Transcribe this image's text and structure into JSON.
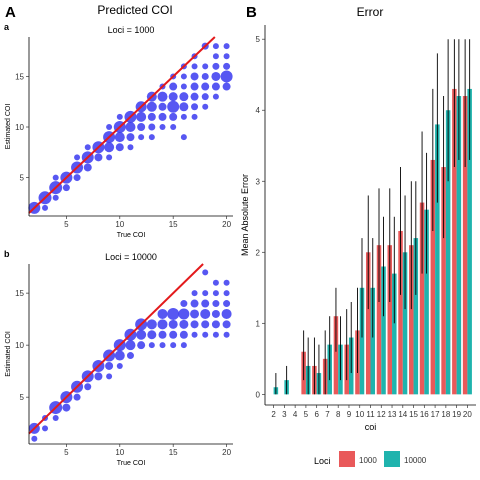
{
  "panel_labels": {
    "A": "A",
    "B": "B",
    "a": "a",
    "b": "b"
  },
  "titles": {
    "left": "Predicted COI",
    "right": "Error"
  },
  "colors": {
    "point": "#3a3af0",
    "identity": "#e31a1c",
    "series_1000": "#e9595a",
    "series_10000": "#1fb3ad",
    "errorbar": "#000000"
  },
  "chart_data": [
    {
      "type": "scatter",
      "panel": "a",
      "title": "Loci = 1000",
      "xlabel": "True COI",
      "ylabel": "Estimated COI",
      "xlim": [
        1.5,
        20.6
      ],
      "ylim": [
        1.2,
        18.9
      ],
      "xticks": [
        5,
        10,
        15,
        20
      ],
      "yticks": [
        5,
        10,
        15
      ],
      "identity_line": true,
      "points": [
        {
          "x": 2,
          "y": 2,
          "s": 6
        },
        {
          "x": 3,
          "y": 3,
          "s": 6.5
        },
        {
          "x": 3,
          "y": 2,
          "s": 3
        },
        {
          "x": 4,
          "y": 4,
          "s": 6.5
        },
        {
          "x": 4,
          "y": 3,
          "s": 3
        },
        {
          "x": 4,
          "y": 5,
          "s": 3
        },
        {
          "x": 5,
          "y": 5,
          "s": 6
        },
        {
          "x": 5,
          "y": 4,
          "s": 3.5
        },
        {
          "x": 6,
          "y": 6,
          "s": 6
        },
        {
          "x": 6,
          "y": 5,
          "s": 3.5
        },
        {
          "x": 6,
          "y": 7,
          "s": 3
        },
        {
          "x": 7,
          "y": 7,
          "s": 6
        },
        {
          "x": 7,
          "y": 6,
          "s": 4
        },
        {
          "x": 7,
          "y": 8,
          "s": 3
        },
        {
          "x": 8,
          "y": 8,
          "s": 6
        },
        {
          "x": 8,
          "y": 7,
          "s": 4
        },
        {
          "x": 9,
          "y": 9,
          "s": 6
        },
        {
          "x": 9,
          "y": 8,
          "s": 5
        },
        {
          "x": 9,
          "y": 7,
          "s": 3
        },
        {
          "x": 9,
          "y": 10,
          "s": 3
        },
        {
          "x": 10,
          "y": 10,
          "s": 6
        },
        {
          "x": 10,
          "y": 9,
          "s": 5
        },
        {
          "x": 10,
          "y": 8,
          "s": 4
        },
        {
          "x": 10,
          "y": 11,
          "s": 3
        },
        {
          "x": 11,
          "y": 11,
          "s": 6
        },
        {
          "x": 11,
          "y": 10,
          "s": 5
        },
        {
          "x": 11,
          "y": 9,
          "s": 4
        },
        {
          "x": 11,
          "y": 8,
          "s": 3
        },
        {
          "x": 12,
          "y": 12,
          "s": 5.5
        },
        {
          "x": 12,
          "y": 11,
          "s": 5
        },
        {
          "x": 12,
          "y": 10,
          "s": 4
        },
        {
          "x": 12,
          "y": 9,
          "s": 3
        },
        {
          "x": 13,
          "y": 13,
          "s": 5
        },
        {
          "x": 13,
          "y": 12,
          "s": 5
        },
        {
          "x": 13,
          "y": 11,
          "s": 4
        },
        {
          "x": 13,
          "y": 10,
          "s": 3.5
        },
        {
          "x": 13,
          "y": 9,
          "s": 3
        },
        {
          "x": 14,
          "y": 14,
          "s": 3
        },
        {
          "x": 14,
          "y": 13,
          "s": 5
        },
        {
          "x": 14,
          "y": 12,
          "s": 4
        },
        {
          "x": 14,
          "y": 11,
          "s": 4
        },
        {
          "x": 14,
          "y": 10,
          "s": 3
        },
        {
          "x": 15,
          "y": 15,
          "s": 3
        },
        {
          "x": 15,
          "y": 14,
          "s": 4
        },
        {
          "x": 15,
          "y": 13,
          "s": 4.5
        },
        {
          "x": 15,
          "y": 12,
          "s": 6
        },
        {
          "x": 15,
          "y": 11,
          "s": 4
        },
        {
          "x": 15,
          "y": 10,
          "s": 3
        },
        {
          "x": 16,
          "y": 16,
          "s": 3
        },
        {
          "x": 16,
          "y": 15,
          "s": 3
        },
        {
          "x": 16,
          "y": 14,
          "s": 3
        },
        {
          "x": 16,
          "y": 13,
          "s": 4.5
        },
        {
          "x": 16,
          "y": 12,
          "s": 4.5
        },
        {
          "x": 16,
          "y": 11,
          "s": 3
        },
        {
          "x": 16,
          "y": 9,
          "s": 3
        },
        {
          "x": 17,
          "y": 17,
          "s": 3
        },
        {
          "x": 17,
          "y": 16,
          "s": 3
        },
        {
          "x": 17,
          "y": 15,
          "s": 4
        },
        {
          "x": 17,
          "y": 14,
          "s": 4
        },
        {
          "x": 17,
          "y": 13,
          "s": 4
        },
        {
          "x": 17,
          "y": 12,
          "s": 3.5
        },
        {
          "x": 17,
          "y": 11,
          "s": 3
        },
        {
          "x": 18,
          "y": 18,
          "s": 3.5
        },
        {
          "x": 18,
          "y": 16,
          "s": 3
        },
        {
          "x": 18,
          "y": 15,
          "s": 3.5
        },
        {
          "x": 18,
          "y": 14,
          "s": 4
        },
        {
          "x": 18,
          "y": 13,
          "s": 3.5
        },
        {
          "x": 18,
          "y": 12,
          "s": 3
        },
        {
          "x": 19,
          "y": 18,
          "s": 3
        },
        {
          "x": 19,
          "y": 17,
          "s": 3
        },
        {
          "x": 19,
          "y": 16,
          "s": 3.5
        },
        {
          "x": 19,
          "y": 15,
          "s": 4.5
        },
        {
          "x": 19,
          "y": 14,
          "s": 4
        },
        {
          "x": 19,
          "y": 13,
          "s": 3
        },
        {
          "x": 20,
          "y": 18,
          "s": 3
        },
        {
          "x": 20,
          "y": 17,
          "s": 3
        },
        {
          "x": 20,
          "y": 16,
          "s": 3.5
        },
        {
          "x": 20,
          "y": 15,
          "s": 6
        },
        {
          "x": 20,
          "y": 14,
          "s": 4
        }
      ]
    },
    {
      "type": "scatter",
      "panel": "b",
      "title": "Loci = 10000",
      "xlabel": "True COI",
      "ylabel": "Estimated COI",
      "xlim": [
        1.5,
        20.6
      ],
      "ylim": [
        0.5,
        17.8
      ],
      "xticks": [
        5,
        10,
        15,
        20
      ],
      "yticks": [
        5,
        10,
        15
      ],
      "identity_line": true,
      "points": [
        {
          "x": 2,
          "y": 2,
          "s": 5.5
        },
        {
          "x": 2,
          "y": 1,
          "s": 3
        },
        {
          "x": 3,
          "y": 3,
          "s": 3
        },
        {
          "x": 3,
          "y": 2,
          "s": 3
        },
        {
          "x": 4,
          "y": 4,
          "s": 6.5
        },
        {
          "x": 4,
          "y": 3,
          "s": 3
        },
        {
          "x": 5,
          "y": 5,
          "s": 6
        },
        {
          "x": 5,
          "y": 4,
          "s": 4
        },
        {
          "x": 6,
          "y": 6,
          "s": 6
        },
        {
          "x": 6,
          "y": 5,
          "s": 3.5
        },
        {
          "x": 7,
          "y": 7,
          "s": 6
        },
        {
          "x": 7,
          "y": 6,
          "s": 3.5
        },
        {
          "x": 8,
          "y": 8,
          "s": 6
        },
        {
          "x": 8,
          "y": 7,
          "s": 4
        },
        {
          "x": 9,
          "y": 9,
          "s": 6
        },
        {
          "x": 9,
          "y": 8,
          "s": 4
        },
        {
          "x": 9,
          "y": 7,
          "s": 3
        },
        {
          "x": 10,
          "y": 10,
          "s": 6
        },
        {
          "x": 10,
          "y": 9,
          "s": 5
        },
        {
          "x": 10,
          "y": 8,
          "s": 3
        },
        {
          "x": 11,
          "y": 11,
          "s": 6
        },
        {
          "x": 11,
          "y": 10,
          "s": 5
        },
        {
          "x": 11,
          "y": 9,
          "s": 3.5
        },
        {
          "x": 12,
          "y": 12,
          "s": 6
        },
        {
          "x": 12,
          "y": 11,
          "s": 5
        },
        {
          "x": 12,
          "y": 10,
          "s": 4
        },
        {
          "x": 13,
          "y": 12,
          "s": 5
        },
        {
          "x": 13,
          "y": 11,
          "s": 4.5
        },
        {
          "x": 13,
          "y": 10,
          "s": 3
        },
        {
          "x": 14,
          "y": 13,
          "s": 5
        },
        {
          "x": 14,
          "y": 12,
          "s": 5
        },
        {
          "x": 14,
          "y": 11,
          "s": 4
        },
        {
          "x": 14,
          "y": 10,
          "s": 3
        },
        {
          "x": 15,
          "y": 13,
          "s": 6
        },
        {
          "x": 15,
          "y": 12,
          "s": 4.5
        },
        {
          "x": 15,
          "y": 11,
          "s": 4
        },
        {
          "x": 15,
          "y": 10,
          "s": 3
        },
        {
          "x": 16,
          "y": 14,
          "s": 3.5
        },
        {
          "x": 16,
          "y": 13,
          "s": 5.5
        },
        {
          "x": 16,
          "y": 12,
          "s": 4.5
        },
        {
          "x": 16,
          "y": 11,
          "s": 4
        },
        {
          "x": 16,
          "y": 10,
          "s": 3
        },
        {
          "x": 17,
          "y": 15,
          "s": 3
        },
        {
          "x": 17,
          "y": 14,
          "s": 4
        },
        {
          "x": 17,
          "y": 13,
          "s": 4.5
        },
        {
          "x": 17,
          "y": 12,
          "s": 4
        },
        {
          "x": 17,
          "y": 11,
          "s": 3
        },
        {
          "x": 18,
          "y": 17,
          "s": 3
        },
        {
          "x": 18,
          "y": 15,
          "s": 3
        },
        {
          "x": 18,
          "y": 14,
          "s": 4
        },
        {
          "x": 18,
          "y": 13,
          "s": 5
        },
        {
          "x": 18,
          "y": 12,
          "s": 4
        },
        {
          "x": 18,
          "y": 11,
          "s": 3
        },
        {
          "x": 19,
          "y": 16,
          "s": 3
        },
        {
          "x": 19,
          "y": 15,
          "s": 3
        },
        {
          "x": 19,
          "y": 14,
          "s": 3.5
        },
        {
          "x": 19,
          "y": 13,
          "s": 4
        },
        {
          "x": 19,
          "y": 12,
          "s": 4
        },
        {
          "x": 19,
          "y": 11,
          "s": 3
        },
        {
          "x": 20,
          "y": 16,
          "s": 3
        },
        {
          "x": 20,
          "y": 15,
          "s": 3
        },
        {
          "x": 20,
          "y": 14,
          "s": 3.5
        },
        {
          "x": 20,
          "y": 13,
          "s": 5
        },
        {
          "x": 20,
          "y": 12,
          "s": 4
        },
        {
          "x": 20,
          "y": 11,
          "s": 3
        }
      ]
    },
    {
      "type": "bar",
      "panel": "B",
      "title": "Error",
      "xlabel": "coi",
      "ylabel": "Mean Absolute Error",
      "ylim": [
        -0.15,
        5.2
      ],
      "yticks": [
        0,
        1,
        2,
        3,
        4,
        5
      ],
      "categories": [
        "2",
        "3",
        "4",
        "5",
        "6",
        "7",
        "8",
        "9",
        "10",
        "11",
        "12",
        "13",
        "14",
        "15",
        "16",
        "17",
        "18",
        "19",
        "20"
      ],
      "legend_title": "Loci",
      "legend_position": "bottom",
      "series": [
        {
          "name": "1000",
          "values": [
            0.0,
            0.0,
            0.0,
            0.6,
            0.4,
            0.5,
            1.1,
            0.7,
            0.9,
            2.0,
            2.1,
            2.1,
            2.3,
            2.1,
            2.7,
            3.3,
            3.2,
            4.3,
            4.2
          ],
          "err_low": [
            0.0,
            0.0,
            0.0,
            0.2,
            0.0,
            0.0,
            0.6,
            0.2,
            0.3,
            1.2,
            1.3,
            1.3,
            1.4,
            1.2,
            1.7,
            2.3,
            2.2,
            3.2,
            3.2
          ],
          "err_high": [
            0.0,
            0.0,
            0.0,
            0.9,
            0.8,
            0.9,
            1.5,
            1.2,
            1.5,
            2.8,
            2.9,
            2.9,
            3.2,
            3.0,
            3.7,
            4.3,
            4.2,
            5.0,
            5.0
          ]
        },
        {
          "name": "10000",
          "values": [
            0.1,
            0.2,
            0.0,
            0.4,
            0.3,
            0.7,
            0.7,
            0.8,
            1.5,
            1.5,
            1.8,
            1.7,
            2.0,
            2.2,
            2.6,
            3.8,
            4.0,
            4.2,
            4.3
          ],
          "err_low": [
            0.0,
            0.0,
            0.0,
            0.0,
            0.0,
            0.2,
            0.2,
            0.3,
            0.8,
            0.8,
            1.1,
            1.0,
            1.2,
            1.4,
            1.7,
            2.7,
            3.0,
            3.3,
            3.3
          ],
          "err_high": [
            0.3,
            0.4,
            0.0,
            0.8,
            0.7,
            1.1,
            1.1,
            1.3,
            2.2,
            2.2,
            2.5,
            2.5,
            2.8,
            3.0,
            3.4,
            4.8,
            5.0,
            5.0,
            5.0
          ]
        }
      ]
    }
  ]
}
